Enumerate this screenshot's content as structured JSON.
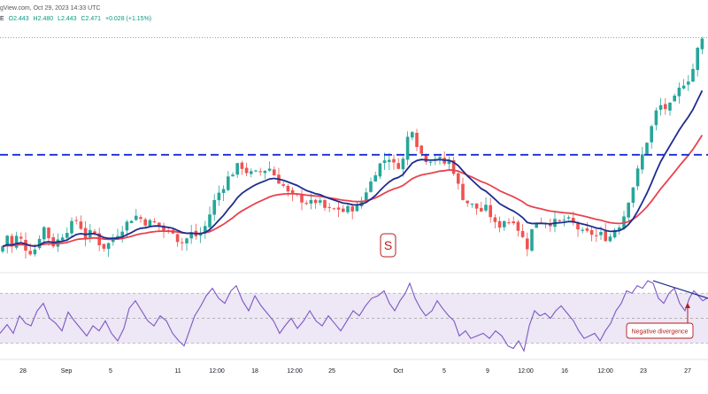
{
  "header": {
    "source_text": "gView.com, Oct 29, 2023 14:33 UTC"
  },
  "ohlc": {
    "prefix": "E",
    "open": "O2.443",
    "high": "H2.480",
    "low": "L2.443",
    "close": "C2.471",
    "change": "+0.028 (+1.15%)"
  },
  "colors": {
    "up_candle": "#26a69a",
    "down_candle": "#ef5350",
    "ema_fast": "#1e2d8f",
    "ema_slow": "#e8434f",
    "resistance": "#1a2bd6",
    "rsi_line": "#7e57c2",
    "rsi_band": "#ede7f6",
    "annotation": "#b71c1c"
  },
  "annotations": {
    "sell_marker": "S",
    "divergence_label": "Negative divergence"
  },
  "chart_data": [
    {
      "type": "candlestick",
      "x_tick_labels": [
        "28",
        "Sep",
        "5",
        "11",
        "12:00",
        "18",
        "12:00",
        "25",
        "Oct",
        "5",
        "9",
        "12:00",
        "16",
        "12:00",
        "23",
        "27"
      ],
      "overlays": [
        "EMA fast",
        "EMA slow",
        "horizontal resistance (dashed)"
      ],
      "resistance_level": 2.245,
      "ylim": [
        1.93,
        2.6
      ],
      "close_path": [
        [
          0,
          1.98
        ],
        [
          4,
          2.0
        ],
        [
          9,
          2.03
        ],
        [
          13,
          1.99
        ],
        [
          18,
          2.02
        ],
        [
          23,
          2.02
        ],
        [
          26,
          1.99
        ],
        [
          32,
          1.99
        ],
        [
          37,
          1.97
        ],
        [
          41,
          2.0
        ],
        [
          49,
          2.05
        ],
        [
          55,
          2.02
        ],
        [
          60,
          2.0
        ],
        [
          65,
          2.01
        ],
        [
          75,
          2.04
        ],
        [
          80,
          2.05
        ],
        [
          85,
          2.07
        ],
        [
          91,
          2.05
        ],
        [
          96,
          2.02
        ],
        [
          100,
          2.03
        ],
        [
          107,
          2.03
        ],
        [
          115,
          1.99
        ],
        [
          122,
          2.0
        ],
        [
          129,
          2.02
        ],
        [
          136,
          2.04
        ],
        [
          144,
          2.06
        ],
        [
          152,
          2.08
        ],
        [
          159,
          2.07
        ],
        [
          165,
          2.06
        ],
        [
          173,
          2.06
        ],
        [
          180,
          2.05
        ],
        [
          189,
          2.03
        ],
        [
          196,
          2.04
        ],
        [
          203,
          2.0
        ],
        [
          209,
          2.01
        ],
        [
          216,
          2.03
        ],
        [
          224,
          2.02
        ],
        [
          232,
          2.05
        ],
        [
          238,
          2.09
        ],
        [
          244,
          2.13
        ],
        [
          250,
          2.15
        ],
        [
          257,
          2.18
        ],
        [
          264,
          2.2
        ],
        [
          271,
          2.22
        ],
        [
          278,
          2.2
        ],
        [
          286,
          2.19
        ],
        [
          295,
          2.2
        ],
        [
          304,
          2.21
        ],
        [
          313,
          2.18
        ],
        [
          320,
          2.16
        ],
        [
          328,
          2.13
        ],
        [
          335,
          2.13
        ],
        [
          343,
          2.12
        ],
        [
          350,
          2.11
        ],
        [
          358,
          2.12
        ],
        [
          366,
          2.1
        ],
        [
          374,
          2.09
        ],
        [
          381,
          2.1
        ],
        [
          388,
          2.09
        ],
        [
          396,
          2.1
        ],
        [
          405,
          2.1
        ],
        [
          412,
          2.14
        ],
        [
          419,
          2.17
        ],
        [
          426,
          2.21
        ],
        [
          434,
          2.23
        ],
        [
          441,
          2.24
        ],
        [
          446,
          2.21
        ],
        [
          452,
          2.22
        ],
        [
          458,
          2.24
        ],
        [
          463,
          2.34
        ],
        [
          468,
          2.3
        ],
        [
          473,
          2.26
        ],
        [
          478,
          2.24
        ],
        [
          484,
          2.23
        ],
        [
          490,
          2.24
        ],
        [
          497,
          2.23
        ],
        [
          503,
          2.22
        ],
        [
          509,
          2.23
        ],
        [
          514,
          2.19
        ],
        [
          519,
          2.15
        ],
        [
          525,
          2.12
        ],
        [
          531,
          2.11
        ],
        [
          538,
          2.1
        ],
        [
          545,
          2.09
        ],
        [
          550,
          2.1
        ],
        [
          556,
          2.07
        ],
        [
          562,
          2.04
        ],
        [
          568,
          2.07
        ],
        [
          574,
          2.06
        ],
        [
          580,
          2.07
        ],
        [
          586,
          2.04
        ],
        [
          592,
          2.01
        ],
        [
          597,
          1.99
        ],
        [
          602,
          2.05
        ],
        [
          608,
          2.07
        ],
        [
          614,
          2.06
        ],
        [
          620,
          2.06
        ],
        [
          627,
          2.06
        ],
        [
          633,
          2.06
        ],
        [
          639,
          2.07
        ],
        [
          645,
          2.06
        ],
        [
          651,
          2.05
        ],
        [
          657,
          2.03
        ],
        [
          663,
          2.03
        ],
        [
          669,
          2.03
        ],
        [
          675,
          2.02
        ],
        [
          681,
          2.03
        ],
        [
          687,
          2.01
        ],
        [
          693,
          2.04
        ],
        [
          699,
          2.05
        ],
        [
          705,
          2.08
        ],
        [
          711,
          2.13
        ],
        [
          717,
          2.17
        ],
        [
          723,
          2.22
        ],
        [
          729,
          2.27
        ],
        [
          735,
          2.31
        ],
        [
          741,
          2.36
        ],
        [
          747,
          2.38
        ],
        [
          753,
          2.37
        ],
        [
          759,
          2.38
        ],
        [
          765,
          2.41
        ],
        [
          771,
          2.44
        ],
        [
          777,
          2.45
        ],
        [
          782,
          2.47
        ],
        [
          786,
          2.51
        ],
        [
          790,
          2.55
        ],
        [
          794,
          2.56
        ],
        [
          798,
          2.54
        ]
      ]
    },
    {
      "type": "line",
      "name": "RSI",
      "ylim": [
        20,
        85
      ],
      "overbought": 70,
      "oversold": 30,
      "midline": 50,
      "x_tick_labels": [
        "28",
        "Sep",
        "5",
        "11",
        "12:00",
        "18",
        "12:00",
        "25",
        "Oct",
        "5",
        "9",
        "12:00",
        "16",
        "12:00",
        "23",
        "27"
      ],
      "values_path": [
        [
          0,
          38
        ],
        [
          8,
          45
        ],
        [
          15,
          38
        ],
        [
          22,
          52
        ],
        [
          29,
          46
        ],
        [
          35,
          44
        ],
        [
          42,
          56
        ],
        [
          49,
          62
        ],
        [
          56,
          50
        ],
        [
          63,
          46
        ],
        [
          70,
          40
        ],
        [
          77,
          55
        ],
        [
          84,
          48
        ],
        [
          91,
          42
        ],
        [
          98,
          36
        ],
        [
          105,
          44
        ],
        [
          112,
          40
        ],
        [
          119,
          48
        ],
        [
          126,
          38
        ],
        [
          133,
          32
        ],
        [
          140,
          42
        ],
        [
          146,
          58
        ],
        [
          153,
          64
        ],
        [
          160,
          56
        ],
        [
          167,
          48
        ],
        [
          174,
          44
        ],
        [
          181,
          52
        ],
        [
          188,
          48
        ],
        [
          195,
          38
        ],
        [
          202,
          32
        ],
        [
          208,
          28
        ],
        [
          214,
          40
        ],
        [
          220,
          52
        ],
        [
          227,
          60
        ],
        [
          233,
          68
        ],
        [
          240,
          74
        ],
        [
          247,
          66
        ],
        [
          254,
          62
        ],
        [
          261,
          72
        ],
        [
          267,
          76
        ],
        [
          274,
          64
        ],
        [
          281,
          56
        ],
        [
          288,
          68
        ],
        [
          295,
          60
        ],
        [
          302,
          54
        ],
        [
          309,
          48
        ],
        [
          316,
          38
        ],
        [
          322,
          44
        ],
        [
          329,
          50
        ],
        [
          336,
          42
        ],
        [
          343,
          48
        ],
        [
          350,
          56
        ],
        [
          357,
          48
        ],
        [
          364,
          44
        ],
        [
          371,
          52
        ],
        [
          378,
          46
        ],
        [
          385,
          40
        ],
        [
          392,
          48
        ],
        [
          399,
          56
        ],
        [
          406,
          52
        ],
        [
          413,
          60
        ],
        [
          420,
          66
        ],
        [
          427,
          68
        ],
        [
          434,
          72
        ],
        [
          440,
          62
        ],
        [
          446,
          56
        ],
        [
          452,
          64
        ],
        [
          458,
          70
        ],
        [
          463,
          78
        ],
        [
          469,
          66
        ],
        [
          475,
          58
        ],
        [
          481,
          52
        ],
        [
          488,
          56
        ],
        [
          494,
          64
        ],
        [
          500,
          58
        ],
        [
          507,
          52
        ],
        [
          513,
          48
        ],
        [
          519,
          36
        ],
        [
          526,
          40
        ],
        [
          532,
          34
        ],
        [
          539,
          36
        ],
        [
          546,
          38
        ],
        [
          553,
          34
        ],
        [
          560,
          40
        ],
        [
          567,
          36
        ],
        [
          574,
          28
        ],
        [
          580,
          26
        ],
        [
          586,
          32
        ],
        [
          592,
          24
        ],
        [
          598,
          44
        ],
        [
          604,
          56
        ],
        [
          610,
          52
        ],
        [
          616,
          54
        ],
        [
          622,
          50
        ],
        [
          628,
          56
        ],
        [
          634,
          60
        ],
        [
          641,
          54
        ],
        [
          648,
          48
        ],
        [
          654,
          40
        ],
        [
          660,
          34
        ],
        [
          666,
          36
        ],
        [
          672,
          38
        ],
        [
          678,
          32
        ],
        [
          684,
          40
        ],
        [
          690,
          46
        ],
        [
          696,
          56
        ],
        [
          702,
          62
        ],
        [
          708,
          72
        ],
        [
          714,
          70
        ],
        [
          720,
          76
        ],
        [
          726,
          74
        ],
        [
          732,
          80
        ],
        [
          738,
          78
        ],
        [
          744,
          66
        ],
        [
          750,
          62
        ],
        [
          756,
          70
        ],
        [
          762,
          74
        ],
        [
          768,
          62
        ],
        [
          774,
          56
        ],
        [
          779,
          66
        ],
        [
          784,
          72
        ],
        [
          789,
          68
        ],
        [
          794,
          64
        ],
        [
          799,
          66
        ]
      ],
      "divergence_line": [
        [
          738,
          80
        ],
        [
          800,
          66
        ]
      ]
    }
  ]
}
